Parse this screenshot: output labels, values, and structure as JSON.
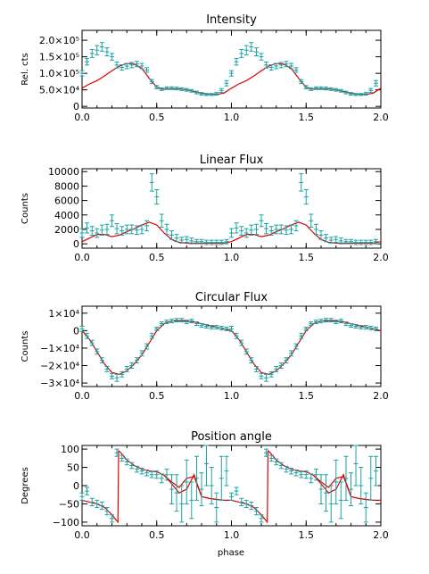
{
  "xlabel": "phase",
  "colors": {
    "data": "#1aa3a3",
    "model": "#e00000",
    "axes": "#000000"
  },
  "chart_data": [
    {
      "type": "line",
      "title": "Intensity",
      "ylabel": "Rel. cts",
      "xlim": [
        0.0,
        2.0
      ],
      "ylim": [
        -5000,
        230000
      ],
      "xticks": [
        {
          "v": 0.0,
          "label": "0.0"
        },
        {
          "v": 0.5,
          "label": "0.5"
        },
        {
          "v": 1.0,
          "label": "1.0"
        },
        {
          "v": 1.5,
          "label": "1.5"
        },
        {
          "v": 2.0,
          "label": "2.0"
        }
      ],
      "yticks": [
        {
          "v": 0,
          "label": "0"
        },
        {
          "v": 50000,
          "label": "5.0×10⁴"
        },
        {
          "v": 100000,
          "label": "1.0×10⁵"
        },
        {
          "v": 150000,
          "label": "1.5×10⁵"
        },
        {
          "v": 200000,
          "label": "2.0×10⁵"
        }
      ],
      "model": {
        "x": [
          0.0,
          0.05,
          0.1,
          0.15,
          0.2,
          0.25,
          0.3,
          0.35,
          0.4,
          0.45,
          0.5,
          0.55,
          0.6,
          0.65,
          0.7,
          0.75,
          0.8,
          0.85,
          0.9,
          0.95,
          1.0
        ],
        "y": [
          55000,
          68000,
          78000,
          92000,
          108000,
          122000,
          130000,
          128000,
          115000,
          85000,
          58000,
          52000,
          52000,
          53000,
          50000,
          45000,
          40000,
          37000,
          36000,
          40000,
          55000
        ]
      },
      "observed": {
        "x": [
          0.0,
          0.033,
          0.067,
          0.1,
          0.133,
          0.167,
          0.2,
          0.233,
          0.267,
          0.3,
          0.333,
          0.367,
          0.4,
          0.433,
          0.467,
          0.5,
          0.533,
          0.567,
          0.6,
          0.633,
          0.667,
          0.7,
          0.733,
          0.767,
          0.8,
          0.833,
          0.867,
          0.9,
          0.933,
          0.967
        ],
        "y": [
          100000,
          135000,
          160000,
          170000,
          180000,
          165000,
          150000,
          125000,
          118000,
          122000,
          125000,
          128000,
          122000,
          110000,
          75000,
          58000,
          52000,
          55000,
          55000,
          54000,
          52000,
          50000,
          47000,
          42000,
          38000,
          36000,
          36000,
          38000,
          48000,
          70000
        ],
        "err": [
          8000,
          10000,
          12000,
          14000,
          13000,
          12000,
          10000,
          9000,
          8000,
          8000,
          8000,
          8000,
          8000,
          7000,
          6000,
          5000,
          4000,
          4000,
          4000,
          4000,
          4000,
          4000,
          4000,
          4000,
          4000,
          3000,
          3000,
          4000,
          6000,
          8000
        ]
      }
    },
    {
      "type": "line",
      "title": "Linear Flux",
      "ylabel": "Counts",
      "xlim": [
        0.0,
        2.0
      ],
      "ylim": [
        -600,
        10400
      ],
      "xticks": [
        {
          "v": 0.0,
          "label": "0.0"
        },
        {
          "v": 0.5,
          "label": "0.5"
        },
        {
          "v": 1.0,
          "label": "1.0"
        },
        {
          "v": 1.5,
          "label": "1.5"
        },
        {
          "v": 2.0,
          "label": "2.0"
        }
      ],
      "yticks": [
        {
          "v": 0,
          "label": "0"
        },
        {
          "v": 2000,
          "label": "2000"
        },
        {
          "v": 4000,
          "label": "4000"
        },
        {
          "v": 6000,
          "label": "6000"
        },
        {
          "v": 8000,
          "label": "8000"
        },
        {
          "v": 10000,
          "label": "10000"
        }
      ],
      "model": {
        "x": [
          0.0,
          0.05,
          0.1,
          0.15,
          0.2,
          0.25,
          0.3,
          0.35,
          0.4,
          0.45,
          0.5,
          0.55,
          0.6,
          0.65,
          0.7,
          0.75,
          0.8,
          0.85,
          0.9,
          0.95,
          1.0
        ],
        "y": [
          300,
          800,
          1300,
          1300,
          1000,
          1200,
          1700,
          2100,
          2600,
          3000,
          2600,
          1500,
          600,
          200,
          100,
          100,
          100,
          100,
          100,
          100,
          300
        ]
      },
      "observed": {
        "x": [
          0.0,
          0.033,
          0.067,
          0.1,
          0.133,
          0.167,
          0.2,
          0.233,
          0.267,
          0.3,
          0.333,
          0.367,
          0.4,
          0.433,
          0.467,
          0.5,
          0.533,
          0.567,
          0.6,
          0.633,
          0.667,
          0.7,
          0.733,
          0.767,
          0.8,
          0.833,
          0.867,
          0.9,
          0.933,
          0.967
        ],
        "y": [
          1500,
          2200,
          1800,
          1500,
          1900,
          2000,
          3200,
          2100,
          1800,
          2000,
          2000,
          1900,
          2000,
          2500,
          8500,
          6500,
          3200,
          2000,
          1200,
          800,
          500,
          600,
          400,
          300,
          300,
          200,
          200,
          200,
          200,
          300
        ],
        "err": [
          600,
          700,
          600,
          600,
          700,
          700,
          800,
          700,
          600,
          600,
          600,
          600,
          600,
          700,
          1200,
          1000,
          900,
          700,
          600,
          500,
          400,
          400,
          400,
          300,
          300,
          300,
          300,
          300,
          300,
          300
        ]
      }
    },
    {
      "type": "line",
      "title": "Circular Flux",
      "ylabel": "Counts",
      "xlim": [
        0.0,
        2.0
      ],
      "ylim": [
        -32000,
        14000
      ],
      "xticks": [
        {
          "v": 0.0,
          "label": "0.0"
        },
        {
          "v": 0.5,
          "label": "0.5"
        },
        {
          "v": 1.0,
          "label": "1.0"
        },
        {
          "v": 1.5,
          "label": "1.5"
        },
        {
          "v": 2.0,
          "label": "2.0"
        }
      ],
      "yticks": [
        {
          "v": -30000,
          "label": "−3×10⁴"
        },
        {
          "v": -20000,
          "label": "−2×10⁴"
        },
        {
          "v": -10000,
          "label": "−1×10⁴"
        },
        {
          "v": 0,
          "label": "0"
        },
        {
          "v": 10000,
          "label": "1×10⁴"
        }
      ],
      "model": {
        "x": [
          0.0,
          0.05,
          0.1,
          0.15,
          0.2,
          0.25,
          0.3,
          0.35,
          0.4,
          0.45,
          0.5,
          0.55,
          0.6,
          0.65,
          0.7,
          0.75,
          0.8,
          0.85,
          0.9,
          0.95,
          1.0
        ],
        "y": [
          0,
          -5000,
          -12000,
          -19000,
          -24000,
          -25000,
          -23000,
          -19000,
          -14000,
          -7000,
          0,
          4000,
          5500,
          5500,
          5500,
          5000,
          4000,
          3000,
          2000,
          1000,
          0
        ]
      },
      "observed": {
        "x": [
          0.0,
          0.033,
          0.067,
          0.1,
          0.133,
          0.167,
          0.2,
          0.233,
          0.267,
          0.3,
          0.333,
          0.367,
          0.4,
          0.433,
          0.467,
          0.5,
          0.533,
          0.567,
          0.6,
          0.633,
          0.667,
          0.7,
          0.733,
          0.767,
          0.8,
          0.833,
          0.867,
          0.9,
          0.933,
          0.967
        ],
        "y": [
          1000,
          -3000,
          -7000,
          -12000,
          -17000,
          -22000,
          -26000,
          -27000,
          -25000,
          -22000,
          -20000,
          -17000,
          -13000,
          -9000,
          -3000,
          1000,
          4000,
          5000,
          5500,
          6000,
          6000,
          5000,
          5500,
          4000,
          3000,
          2500,
          2000,
          2000,
          1500,
          1000
        ],
        "err": [
          1500,
          1500,
          1500,
          1500,
          1500,
          1500,
          1500,
          2000,
          1500,
          1500,
          1500,
          1500,
          1500,
          1500,
          1500,
          1000,
          1000,
          1000,
          1000,
          1000,
          1000,
          1000,
          1000,
          1000,
          1000,
          1000,
          1000,
          1000,
          1000,
          1000
        ]
      }
    },
    {
      "type": "line",
      "title": "Position angle",
      "ylabel": "Degrees",
      "xlim": [
        0.0,
        2.0
      ],
      "ylim": [
        -110,
        110
      ],
      "xticks": [
        {
          "v": 0.0,
          "label": "0.0"
        },
        {
          "v": 0.5,
          "label": "0.5"
        },
        {
          "v": 1.0,
          "label": "1.0"
        },
        {
          "v": 1.5,
          "label": "1.5"
        },
        {
          "v": 2.0,
          "label": "2.0"
        }
      ],
      "yticks": [
        {
          "v": -100,
          "label": "−100"
        },
        {
          "v": -50,
          "label": "−50"
        },
        {
          "v": 0,
          "label": "0"
        },
        {
          "v": 50,
          "label": "50"
        },
        {
          "v": 100,
          "label": "100"
        }
      ],
      "model": {
        "x": [
          0.0,
          0.05,
          0.1,
          0.15,
          0.2,
          0.24,
          0.245,
          0.26,
          0.3,
          0.35,
          0.4,
          0.45,
          0.5,
          0.55,
          0.6,
          0.65,
          0.7,
          0.75,
          0.8,
          0.85,
          0.9,
          0.95,
          1.0
        ],
        "y": [
          -40,
          -45,
          -50,
          -60,
          -80,
          -100,
          95,
          90,
          70,
          55,
          45,
          40,
          38,
          28,
          10,
          -5,
          20,
          25,
          -30,
          -35,
          -38,
          -40,
          -40
        ],
        "branch": {
          "x": [
            0.55,
            0.6,
            0.65,
            0.7,
            0.75,
            0.8,
            0.85,
            0.9
          ],
          "y": [
            28,
            5,
            -20,
            -10,
            30,
            -30,
            -35,
            -38
          ]
        }
      },
      "observed": {
        "x": [
          0.0,
          0.033,
          0.067,
          0.1,
          0.133,
          0.167,
          0.2,
          0.233,
          0.267,
          0.3,
          0.333,
          0.367,
          0.4,
          0.433,
          0.467,
          0.5,
          0.533,
          0.567,
          0.6,
          0.633,
          0.667,
          0.7,
          0.733,
          0.767,
          0.8,
          0.833,
          0.867,
          0.9,
          0.933,
          0.967
        ],
        "y": [
          -30,
          -15,
          -45,
          -50,
          -55,
          -70,
          -90,
          90,
          75,
          65,
          55,
          45,
          40,
          35,
          30,
          30,
          20,
          30,
          -10,
          -20,
          -50,
          10,
          -40,
          20,
          -10,
          60,
          0,
          -60,
          20,
          40
        ],
        "err": [
          10,
          10,
          10,
          10,
          10,
          10,
          10,
          10,
          8,
          8,
          8,
          8,
          8,
          8,
          8,
          10,
          12,
          15,
          40,
          50,
          50,
          60,
          50,
          60,
          45,
          60,
          50,
          40,
          60,
          40
        ]
      }
    }
  ]
}
